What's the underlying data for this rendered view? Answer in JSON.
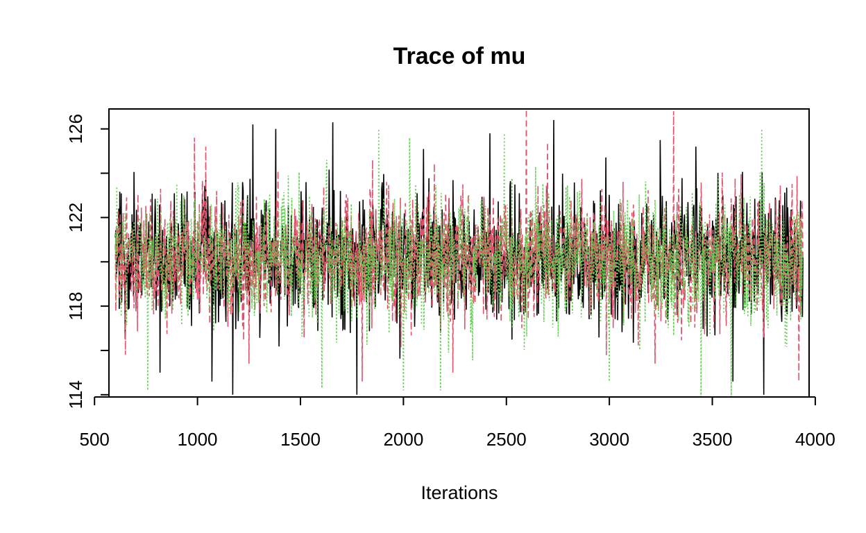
{
  "chart_data": {
    "type": "line",
    "title": "Trace of mu",
    "xlabel": "Iterations",
    "ylabel": "",
    "xlim": [
      570,
      3970
    ],
    "ylim": [
      113.9,
      126.9
    ],
    "x_ticks": [
      500,
      1000,
      1500,
      2000,
      2500,
      3000,
      3500,
      4000
    ],
    "y_ticks": [
      114,
      116,
      118,
      120,
      122,
      124,
      126
    ],
    "x_tick_labels": [
      "500",
      "1000",
      "1500",
      "2000",
      "2500",
      "3000",
      "3500",
      "4000"
    ],
    "y_tick_labels": [
      "114",
      "",
      "118",
      "",
      "122",
      "",
      "126"
    ],
    "x_range_data": [
      601,
      3940
    ],
    "grid": false,
    "legend": "none",
    "series": [
      {
        "color": "#000000",
        "dash": "solid",
        "points_approx": [
          [
            601,
            121.1
          ],
          [
            700,
            120.3
          ],
          [
            818,
            115.0
          ],
          [
            1000,
            120.2
          ],
          [
            1070,
            114.6
          ],
          [
            1171,
            114.0
          ],
          [
            1269,
            126.2
          ],
          [
            1380,
            126.0
          ],
          [
            1500,
            120.1
          ],
          [
            1657,
            126.3
          ],
          [
            1774,
            114.0
          ],
          [
            1850,
            119.8
          ],
          [
            2000,
            120.3
          ],
          [
            2180,
            116.8
          ],
          [
            2420,
            125.8
          ],
          [
            2600,
            120.1
          ],
          [
            2730,
            126.4
          ],
          [
            2900,
            118.5
          ],
          [
            3100,
            121.8
          ],
          [
            3247,
            125.5
          ],
          [
            3420,
            125.2
          ],
          [
            3600,
            114.6
          ],
          [
            3750,
            114.0
          ],
          [
            3940,
            120.2
          ]
        ]
      },
      {
        "color": "#df536b",
        "dash": "dashed",
        "points_approx": [
          [
            601,
            120.8
          ],
          [
            650,
            115.8
          ],
          [
            985,
            125.6
          ],
          [
            1040,
            125.2
          ],
          [
            1250,
            115.4
          ],
          [
            1500,
            119.8
          ],
          [
            1800,
            114.6
          ],
          [
            1850,
            124.6
          ],
          [
            2000,
            120.0
          ],
          [
            2240,
            115.0
          ],
          [
            2400,
            119.7
          ],
          [
            2597,
            126.9
          ],
          [
            2700,
            125.4
          ],
          [
            2900,
            119.9
          ],
          [
            3222,
            115.4
          ],
          [
            3312,
            126.8
          ],
          [
            3500,
            120.3
          ],
          [
            3700,
            119.6
          ],
          [
            3920,
            114.6
          ],
          [
            3940,
            120.0
          ]
        ]
      },
      {
        "color": "#61d04f",
        "dash": "dotted",
        "points_approx": [
          [
            601,
            120.4
          ],
          [
            700,
            119.5
          ],
          [
            1000,
            121.0
          ],
          [
            1200,
            123.4
          ],
          [
            1500,
            119.9
          ],
          [
            1604,
            114.3
          ],
          [
            1880,
            126.0
          ],
          [
            2000,
            114.2
          ],
          [
            2030,
            125.6
          ],
          [
            2180,
            114.2
          ],
          [
            2350,
            121.0
          ],
          [
            2490,
            125.8
          ],
          [
            2800,
            119.6
          ],
          [
            3000,
            114.6
          ],
          [
            3300,
            120.5
          ],
          [
            3445,
            113.9
          ],
          [
            3592,
            113.9
          ],
          [
            3740,
            126.0
          ],
          [
            3940,
            120.3
          ]
        ]
      }
    ]
  }
}
